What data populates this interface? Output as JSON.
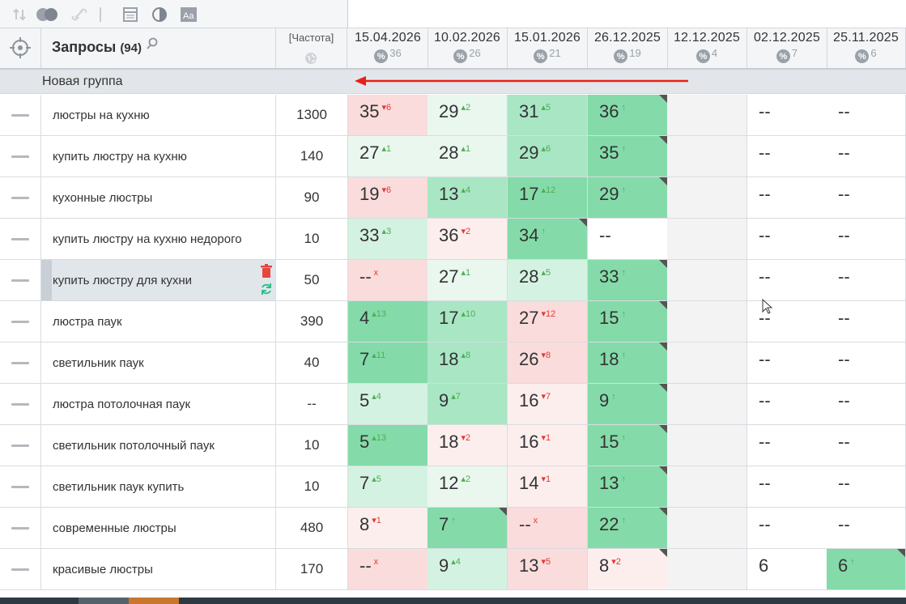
{
  "header": {
    "queries_label": "Запросы",
    "queries_count": "(94)",
    "freq_label": "[Частота]",
    "dates": [
      {
        "date": "15.04.2026",
        "pct": "36"
      },
      {
        "date": "10.02.2026",
        "pct": "26"
      },
      {
        "date": "15.01.2026",
        "pct": "21"
      },
      {
        "date": "26.12.2025",
        "pct": "19"
      },
      {
        "date": "12.12.2025",
        "pct": "4"
      },
      {
        "date": "02.12.2025",
        "pct": "7"
      },
      {
        "date": "25.11.2025",
        "pct": "6"
      }
    ],
    "pct_symbol": "%"
  },
  "group": {
    "label": "Новая группа"
  },
  "colors": {
    "green_strong": "#84dba9",
    "green_mid": "#a9e6c4",
    "green_light": "#d4f2e1",
    "green_pale": "#e9f7ef",
    "red_light": "#fadcdc",
    "red_pale": "#fdeeee",
    "gray": "#f3f3f4",
    "white": "#ffffff",
    "arrow": "#e8201a"
  },
  "rows": [
    {
      "query": "люстры на кухню",
      "freq": "1300",
      "cells": [
        {
          "v": "35",
          "d": "6",
          "dir": "down",
          "bg": "red_light"
        },
        {
          "v": "29",
          "d": "2",
          "dir": "up",
          "bg": "green_pale"
        },
        {
          "v": "31",
          "d": "5",
          "dir": "up",
          "bg": "green_mid"
        },
        {
          "v": "36",
          "d": "↑",
          "dir": "up",
          "bg": "green_strong",
          "flag": true
        },
        {
          "v": "",
          "bg": "gray"
        },
        {
          "v": "--",
          "bg": "white"
        },
        {
          "v": "--",
          "bg": "white"
        }
      ]
    },
    {
      "query": "купить люстру на кухню",
      "freq": "140",
      "cells": [
        {
          "v": "27",
          "d": "1",
          "dir": "up",
          "bg": "green_pale"
        },
        {
          "v": "28",
          "d": "1",
          "dir": "up",
          "bg": "green_pale"
        },
        {
          "v": "29",
          "d": "6",
          "dir": "up",
          "bg": "green_mid"
        },
        {
          "v": "35",
          "d": "↑",
          "dir": "up",
          "bg": "green_strong",
          "flag": true
        },
        {
          "v": "",
          "bg": "gray"
        },
        {
          "v": "--",
          "bg": "white"
        },
        {
          "v": "--",
          "bg": "white"
        }
      ]
    },
    {
      "query": "кухонные люстры",
      "freq": "90",
      "cells": [
        {
          "v": "19",
          "d": "6",
          "dir": "down",
          "bg": "red_light"
        },
        {
          "v": "13",
          "d": "4",
          "dir": "up",
          "bg": "green_mid"
        },
        {
          "v": "17",
          "d": "12",
          "dir": "up",
          "bg": "green_strong"
        },
        {
          "v": "29",
          "d": "↑",
          "dir": "up",
          "bg": "green_strong",
          "flag": true
        },
        {
          "v": "",
          "bg": "gray"
        },
        {
          "v": "--",
          "bg": "white"
        },
        {
          "v": "--",
          "bg": "white"
        }
      ]
    },
    {
      "query": "купить люстру на кухню недорого",
      "freq": "10",
      "cells": [
        {
          "v": "33",
          "d": "3",
          "dir": "up",
          "bg": "green_light"
        },
        {
          "v": "36",
          "d": "2",
          "dir": "down",
          "bg": "red_pale"
        },
        {
          "v": "34",
          "d": "↑",
          "dir": "up",
          "bg": "green_strong",
          "flag": true
        },
        {
          "v": "--",
          "bg": "white"
        },
        {
          "v": "",
          "bg": "gray"
        },
        {
          "v": "--",
          "bg": "white"
        },
        {
          "v": "--",
          "bg": "white"
        }
      ]
    },
    {
      "query": "купить люстру для кухни",
      "freq": "50",
      "selected": true,
      "cells": [
        {
          "v": "--",
          "d": "x",
          "dir": "down",
          "bg": "red_light"
        },
        {
          "v": "27",
          "d": "1",
          "dir": "up",
          "bg": "green_pale"
        },
        {
          "v": "28",
          "d": "5",
          "dir": "up",
          "bg": "green_light"
        },
        {
          "v": "33",
          "d": "↑",
          "dir": "up",
          "bg": "green_strong",
          "flag": true
        },
        {
          "v": "",
          "bg": "gray"
        },
        {
          "v": "--",
          "bg": "white"
        },
        {
          "v": "--",
          "bg": "white"
        }
      ]
    },
    {
      "query": "люстра паук",
      "freq": "390",
      "cells": [
        {
          "v": "4",
          "d": "13",
          "dir": "up",
          "bg": "green_strong"
        },
        {
          "v": "17",
          "d": "10",
          "dir": "up",
          "bg": "green_mid"
        },
        {
          "v": "27",
          "d": "12",
          "dir": "down",
          "bg": "red_light"
        },
        {
          "v": "15",
          "d": "↑",
          "dir": "up",
          "bg": "green_strong",
          "flag": true
        },
        {
          "v": "",
          "bg": "gray"
        },
        {
          "v": "--",
          "bg": "white"
        },
        {
          "v": "--",
          "bg": "white"
        }
      ]
    },
    {
      "query": "светильник паук",
      "freq": "40",
      "cells": [
        {
          "v": "7",
          "d": "11",
          "dir": "up",
          "bg": "green_strong"
        },
        {
          "v": "18",
          "d": "8",
          "dir": "up",
          "bg": "green_mid"
        },
        {
          "v": "26",
          "d": "8",
          "dir": "down",
          "bg": "red_light"
        },
        {
          "v": "18",
          "d": "↑",
          "dir": "up",
          "bg": "green_strong",
          "flag": true
        },
        {
          "v": "",
          "bg": "gray"
        },
        {
          "v": "--",
          "bg": "white"
        },
        {
          "v": "--",
          "bg": "white"
        }
      ]
    },
    {
      "query": "люстра потолочная паук",
      "freq": "--",
      "cells": [
        {
          "v": "5",
          "d": "4",
          "dir": "up",
          "bg": "green_light"
        },
        {
          "v": "9",
          "d": "7",
          "dir": "up",
          "bg": "green_mid"
        },
        {
          "v": "16",
          "d": "7",
          "dir": "down",
          "bg": "red_pale"
        },
        {
          "v": "9",
          "d": "↑",
          "dir": "up",
          "bg": "green_strong",
          "flag": true
        },
        {
          "v": "",
          "bg": "gray"
        },
        {
          "v": "--",
          "bg": "white"
        },
        {
          "v": "--",
          "bg": "white"
        }
      ]
    },
    {
      "query": "светильник потолочный паук",
      "freq": "10",
      "cells": [
        {
          "v": "5",
          "d": "13",
          "dir": "up",
          "bg": "green_strong"
        },
        {
          "v": "18",
          "d": "2",
          "dir": "down",
          "bg": "red_pale"
        },
        {
          "v": "16",
          "d": "1",
          "dir": "down",
          "bg": "red_pale"
        },
        {
          "v": "15",
          "d": "↑",
          "dir": "up",
          "bg": "green_strong",
          "flag": true
        },
        {
          "v": "",
          "bg": "gray"
        },
        {
          "v": "--",
          "bg": "white"
        },
        {
          "v": "--",
          "bg": "white"
        }
      ]
    },
    {
      "query": "светильник паук купить",
      "freq": "10",
      "cells": [
        {
          "v": "7",
          "d": "5",
          "dir": "up",
          "bg": "green_light"
        },
        {
          "v": "12",
          "d": "2",
          "dir": "up",
          "bg": "green_pale"
        },
        {
          "v": "14",
          "d": "1",
          "dir": "down",
          "bg": "red_pale"
        },
        {
          "v": "13",
          "d": "↑",
          "dir": "up",
          "bg": "green_strong",
          "flag": true
        },
        {
          "v": "",
          "bg": "gray"
        },
        {
          "v": "--",
          "bg": "white"
        },
        {
          "v": "--",
          "bg": "white"
        }
      ]
    },
    {
      "query": "современные люстры",
      "freq": "480",
      "cells": [
        {
          "v": "8",
          "d": "1",
          "dir": "down",
          "bg": "red_pale"
        },
        {
          "v": "7",
          "d": "↑",
          "dir": "up",
          "bg": "green_strong",
          "flag": true
        },
        {
          "v": "--",
          "d": "x",
          "dir": "down",
          "bg": "red_light"
        },
        {
          "v": "22",
          "d": "↑",
          "dir": "up",
          "bg": "green_strong",
          "flag": true
        },
        {
          "v": "",
          "bg": "gray"
        },
        {
          "v": "--",
          "bg": "white"
        },
        {
          "v": "--",
          "bg": "white"
        }
      ]
    },
    {
      "query": "красивые люстры",
      "freq": "170",
      "cells": [
        {
          "v": "--",
          "d": "x",
          "dir": "down",
          "bg": "red_light"
        },
        {
          "v": "9",
          "d": "4",
          "dir": "up",
          "bg": "green_light"
        },
        {
          "v": "13",
          "d": "5",
          "dir": "down",
          "bg": "red_light"
        },
        {
          "v": "8",
          "d": "2",
          "dir": "down",
          "bg": "red_pale",
          "flag": true
        },
        {
          "v": "",
          "bg": "gray"
        },
        {
          "v": "6",
          "bg": "white"
        },
        {
          "v": "6",
          "d": "↑",
          "dir": "up",
          "bg": "green_strong",
          "flag": true
        }
      ]
    }
  ]
}
